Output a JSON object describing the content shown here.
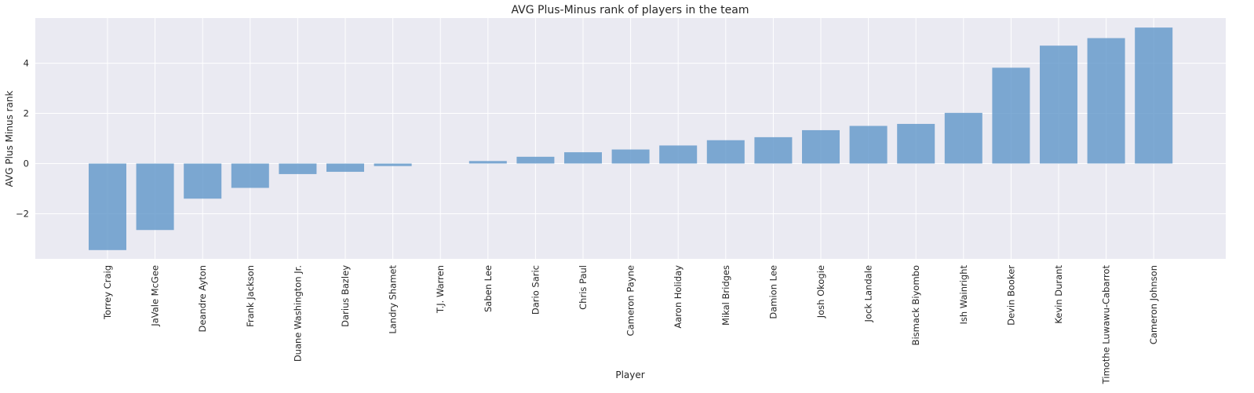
{
  "chart_data": {
    "type": "bar",
    "title": "AVG Plus-Minus rank of players in the team",
    "xlabel": "Player",
    "ylabel": "AVG Plus Minus rank",
    "ylim": [
      -3.8,
      5.8
    ],
    "yticks": [
      -2,
      0,
      2,
      4
    ],
    "grid": true,
    "bar_color": "#5b93c8",
    "background": "#eaeaf2",
    "categories": [
      "Torrey Craig",
      "JaVale McGee",
      "Deandre Ayton",
      "Frank Jackson",
      "Duane Washington Jr.",
      "Darius Bazley",
      "Landry Shamet",
      "T.J. Warren",
      "Saben Lee",
      "Dario Saric",
      "Chris Paul",
      "Cameron Payne",
      "Aaron Holiday",
      "Mikal Bridges",
      "Damion Lee",
      "Josh Okogie",
      "Jock Landale",
      "Bismack Biyombo",
      "Ish Wainright",
      "Devin Booker",
      "Kevin Durant",
      "Timothe Luwawu-Cabarrot",
      "Cameron Johnson"
    ],
    "values": [
      -3.45,
      -2.65,
      -1.4,
      -0.97,
      -0.42,
      -0.33,
      -0.1,
      0.0,
      0.1,
      0.27,
      0.45,
      0.56,
      0.72,
      0.93,
      1.05,
      1.33,
      1.5,
      1.58,
      2.02,
      3.82,
      4.7,
      5.0,
      5.42
    ]
  }
}
